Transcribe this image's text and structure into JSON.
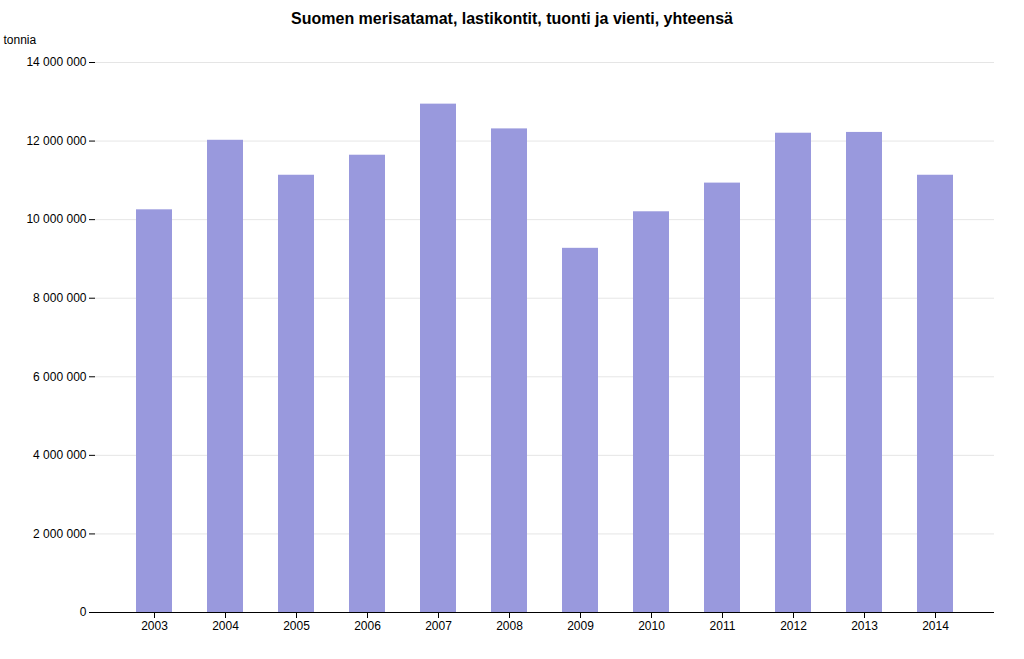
{
  "chart_data": {
    "type": "bar",
    "title": "Suomen merisatamat, lastikontit, tuonti ja vienti, yhteensä",
    "categories": [
      "2003",
      "2004",
      "2005",
      "2006",
      "2007",
      "2008",
      "2009",
      "2010",
      "2011",
      "2012",
      "2013",
      "2014"
    ],
    "values": [
      10250000,
      12020000,
      11130000,
      11640000,
      12940000,
      12310000,
      9270000,
      10200000,
      10930000,
      12200000,
      12220000,
      11130000
    ],
    "color": "#9999dd",
    "ylabel": "tonnia",
    "ylim": [
      0,
      14000000
    ],
    "yticks": [
      0,
      {
        "value": 2000000,
        "label": "2 000 000"
      },
      {
        "value": 4000000,
        "label": "4 000 000"
      },
      {
        "value": 6000000,
        "label": "6 000 000"
      },
      {
        "value": 8000000,
        "label": "8 000 000"
      },
      {
        "value": 10000000,
        "label": "10 000 000"
      },
      {
        "value": 12000000,
        "label": "12 000 000"
      },
      {
        "value": 14000000,
        "label": "14 000 000"
      }
    ],
    "grid": true
  }
}
